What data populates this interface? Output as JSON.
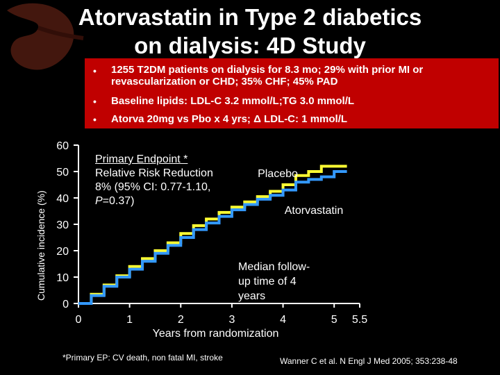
{
  "title": {
    "line1": "Atorvastatin in Type 2 diabetics",
    "line2": "on dialysis: 4D Study"
  },
  "bullets": [
    "1255 T2DM patients on dialysis for 8.3 mo; 29% with prior MI or revascularization or CHD; 35% CHF; 45% PAD",
    "Baseline lipids: LDL-C 3.2 mmol/L;TG 3.0 mmol/L",
    "Atorva 20mg vs Pbo x 4 yrs; Δ LDL-C: 1 mmol/L"
  ],
  "bullet_symbol": "•",
  "endpoint": {
    "line1": "Primary Endpoint *",
    "line2": "Relative Risk Reduction",
    "line3": "8% (95% CI: 0.77-1.10,",
    "p_label": "P",
    "p_value": "=0.37)"
  },
  "median": {
    "line1": "Median follow-",
    "line2": "up time of 4",
    "line3": "years"
  },
  "footnote": "*Primary EP: CV death, non fatal MI, stroke",
  "citation": "Wanner C et al. N Engl J Med 2005; 353:238-48",
  "colors": {
    "background": "#000000",
    "box": "#c00000",
    "placebo": "#ffff33",
    "atorvastatin": "#3399ff"
  },
  "chart_data": {
    "type": "line",
    "xlabel": "Years from randomization",
    "ylabel": "Cumulative incidence (%)",
    "xlim": [
      0,
      5.5
    ],
    "ylim": [
      0,
      60
    ],
    "xticks": [
      "0",
      "1",
      "2",
      "3",
      "4",
      "5",
      "5.5"
    ],
    "yticks": [
      "0",
      "10",
      "20",
      "30",
      "40",
      "50",
      "60"
    ],
    "xtick_values": [
      0,
      1,
      2,
      3,
      4,
      5,
      5.5
    ],
    "ytick_values": [
      0,
      10,
      20,
      30,
      40,
      50,
      60
    ],
    "series": [
      {
        "name": "Placebo",
        "color": "#ffff33",
        "x": [
          0,
          0.25,
          0.5,
          0.75,
          1.0,
          1.25,
          1.5,
          1.75,
          2.0,
          2.25,
          2.5,
          2.75,
          3.0,
          3.25,
          3.5,
          3.75,
          4.0,
          4.25,
          4.5,
          4.75,
          5.0,
          5.25
        ],
        "y": [
          0,
          3.5,
          7,
          10.5,
          14,
          17,
          20,
          23,
          26.5,
          29.5,
          32,
          34.5,
          36.5,
          38.5,
          40.5,
          42.5,
          45,
          48.5,
          50,
          52,
          52,
          52
        ]
      },
      {
        "name": "Atorvastatin",
        "color": "#3399ff",
        "x": [
          0,
          0.25,
          0.5,
          0.75,
          1.0,
          1.25,
          1.5,
          1.75,
          2.0,
          2.25,
          2.5,
          2.75,
          3.0,
          3.25,
          3.5,
          3.75,
          4.0,
          4.25,
          4.5,
          4.75,
          5.0,
          5.25
        ],
        "y": [
          0,
          3,
          6.5,
          10,
          13,
          16,
          19,
          22,
          25,
          28,
          30.5,
          33,
          35.5,
          37.5,
          39.5,
          41,
          43,
          46,
          47,
          48,
          50,
          50
        ]
      }
    ]
  }
}
